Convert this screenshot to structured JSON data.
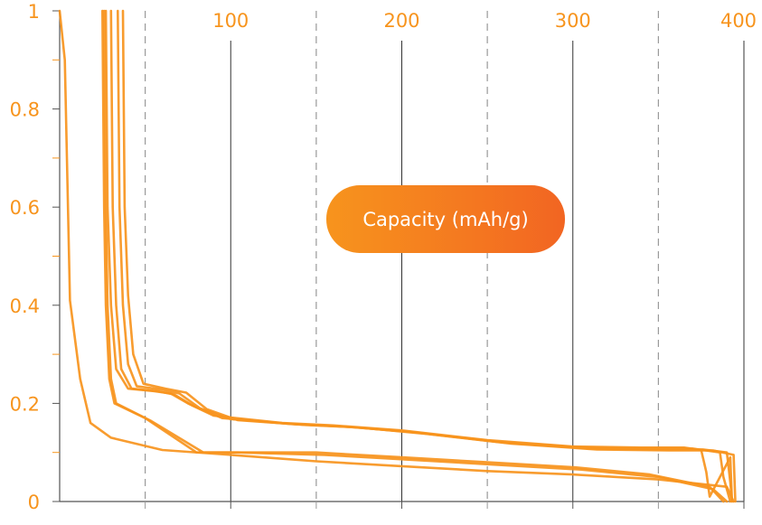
{
  "chart_data": {
    "type": "line",
    "xlabel": "Capacity (mAh/g)",
    "ylabel": "",
    "title": "",
    "xlim": [
      0,
      400
    ],
    "ylim": [
      0,
      1
    ],
    "x_ticks": [
      {
        "value": 100,
        "label": "100"
      },
      {
        "value": 200,
        "label": "200"
      },
      {
        "value": 300,
        "label": "300"
      },
      {
        "value": 400,
        "label": "400"
      }
    ],
    "y_ticks": [
      {
        "value": 0,
        "label": "0"
      },
      {
        "value": 0.2,
        "label": "0.2"
      },
      {
        "value": 0.4,
        "label": "0.4"
      },
      {
        "value": 0.6,
        "label": "0.6"
      },
      {
        "value": 0.8,
        "label": "0.8"
      },
      {
        "value": 1,
        "label": "1"
      }
    ],
    "x_axis_position": "top",
    "grid": "vertical lines (solid at 100, 200, 300, 400; dashed between)",
    "color": "#F7941D",
    "badge_color_start": "#F7941D",
    "badge_color_end": "#F26522",
    "series": [
      {
        "points": [
          [
            0,
            1
          ],
          [
            3,
            0.9
          ],
          [
            6,
            0.41
          ],
          [
            12,
            0.25
          ],
          [
            18,
            0.16
          ],
          [
            30,
            0.13
          ],
          [
            60,
            0.105
          ],
          [
            100,
            0.095
          ],
          [
            150,
            0.082
          ],
          [
            200,
            0.072
          ],
          [
            250,
            0.062
          ],
          [
            300,
            0.055
          ],
          [
            350,
            0.045
          ],
          [
            390,
            0.03
          ],
          [
            394,
            0.0
          ]
        ]
      },
      {
        "points": [
          [
            25,
            1
          ],
          [
            26,
            0.6
          ],
          [
            27,
            0.4
          ],
          [
            29,
            0.25
          ],
          [
            32,
            0.2
          ],
          [
            50,
            0.17
          ],
          [
            80,
            0.1
          ],
          [
            100,
            0.1
          ],
          [
            150,
            0.1
          ],
          [
            160,
            0.098
          ],
          [
            200,
            0.09
          ],
          [
            250,
            0.08
          ],
          [
            300,
            0.07
          ],
          [
            345,
            0.055
          ],
          [
            380,
            0.03
          ],
          [
            388,
            0.0
          ]
        ]
      },
      {
        "points": [
          [
            26,
            1
          ],
          [
            27,
            0.6
          ],
          [
            28,
            0.4
          ],
          [
            30,
            0.25
          ],
          [
            33,
            0.2
          ],
          [
            53,
            0.165
          ],
          [
            84,
            0.1
          ],
          [
            104,
            0.1
          ],
          [
            155,
            0.095
          ],
          [
            205,
            0.085
          ],
          [
            255,
            0.075
          ],
          [
            305,
            0.065
          ],
          [
            350,
            0.05
          ],
          [
            382,
            0.025
          ],
          [
            390,
            0.0
          ]
        ]
      },
      {
        "points": [
          [
            27,
            1
          ],
          [
            28,
            0.6
          ],
          [
            30,
            0.4
          ],
          [
            33,
            0.27
          ],
          [
            40,
            0.23
          ],
          [
            55,
            0.225
          ],
          [
            65,
            0.22
          ],
          [
            75,
            0.2
          ],
          [
            90,
            0.175
          ],
          [
            130,
            0.16
          ],
          [
            160,
            0.155
          ],
          [
            200,
            0.145
          ],
          [
            250,
            0.125
          ],
          [
            300,
            0.112
          ],
          [
            340,
            0.11
          ],
          [
            365,
            0.11
          ],
          [
            375,
            0.105
          ],
          [
            378,
            0.06
          ],
          [
            380,
            0.01
          ],
          [
            392,
            0.09
          ],
          [
            393,
            0.0
          ]
        ]
      },
      {
        "points": [
          [
            30,
            1
          ],
          [
            31,
            0.6
          ],
          [
            33,
            0.4
          ],
          [
            36,
            0.27
          ],
          [
            42,
            0.23
          ],
          [
            57,
            0.225
          ],
          [
            67,
            0.218
          ],
          [
            78,
            0.195
          ],
          [
            95,
            0.17
          ],
          [
            135,
            0.158
          ],
          [
            165,
            0.153
          ],
          [
            205,
            0.142
          ],
          [
            255,
            0.122
          ],
          [
            305,
            0.11
          ],
          [
            345,
            0.108
          ],
          [
            370,
            0.108
          ],
          [
            386,
            0.1
          ],
          [
            388,
            0.05
          ],
          [
            392,
            0.0
          ]
        ]
      },
      {
        "points": [
          [
            34,
            1
          ],
          [
            35,
            0.6
          ],
          [
            37,
            0.4
          ],
          [
            40,
            0.28
          ],
          [
            45,
            0.235
          ],
          [
            60,
            0.228
          ],
          [
            70,
            0.22
          ],
          [
            82,
            0.19
          ],
          [
            100,
            0.168
          ],
          [
            140,
            0.157
          ],
          [
            170,
            0.152
          ],
          [
            210,
            0.14
          ],
          [
            260,
            0.12
          ],
          [
            310,
            0.108
          ],
          [
            350,
            0.106
          ],
          [
            376,
            0.106
          ],
          [
            390,
            0.1
          ],
          [
            392,
            0.04
          ],
          [
            393,
            0.0
          ]
        ]
      },
      {
        "points": [
          [
            37,
            1
          ],
          [
            38,
            0.6
          ],
          [
            40,
            0.42
          ],
          [
            43,
            0.3
          ],
          [
            49,
            0.24
          ],
          [
            62,
            0.23
          ],
          [
            74,
            0.222
          ],
          [
            86,
            0.188
          ],
          [
            104,
            0.166
          ],
          [
            144,
            0.156
          ],
          [
            174,
            0.151
          ],
          [
            214,
            0.138
          ],
          [
            264,
            0.118
          ],
          [
            314,
            0.106
          ],
          [
            356,
            0.104
          ],
          [
            382,
            0.104
          ],
          [
            394,
            0.095
          ],
          [
            395,
            0.0
          ]
        ]
      }
    ]
  },
  "axis_labels": {
    "x_ticks": [
      "100",
      "200",
      "300",
      "400"
    ],
    "y_ticks": [
      "0",
      "0.2",
      "0.4",
      "0.6",
      "0.8",
      "1"
    ]
  },
  "badge": {
    "label": "Capacity (mAh/g)"
  }
}
